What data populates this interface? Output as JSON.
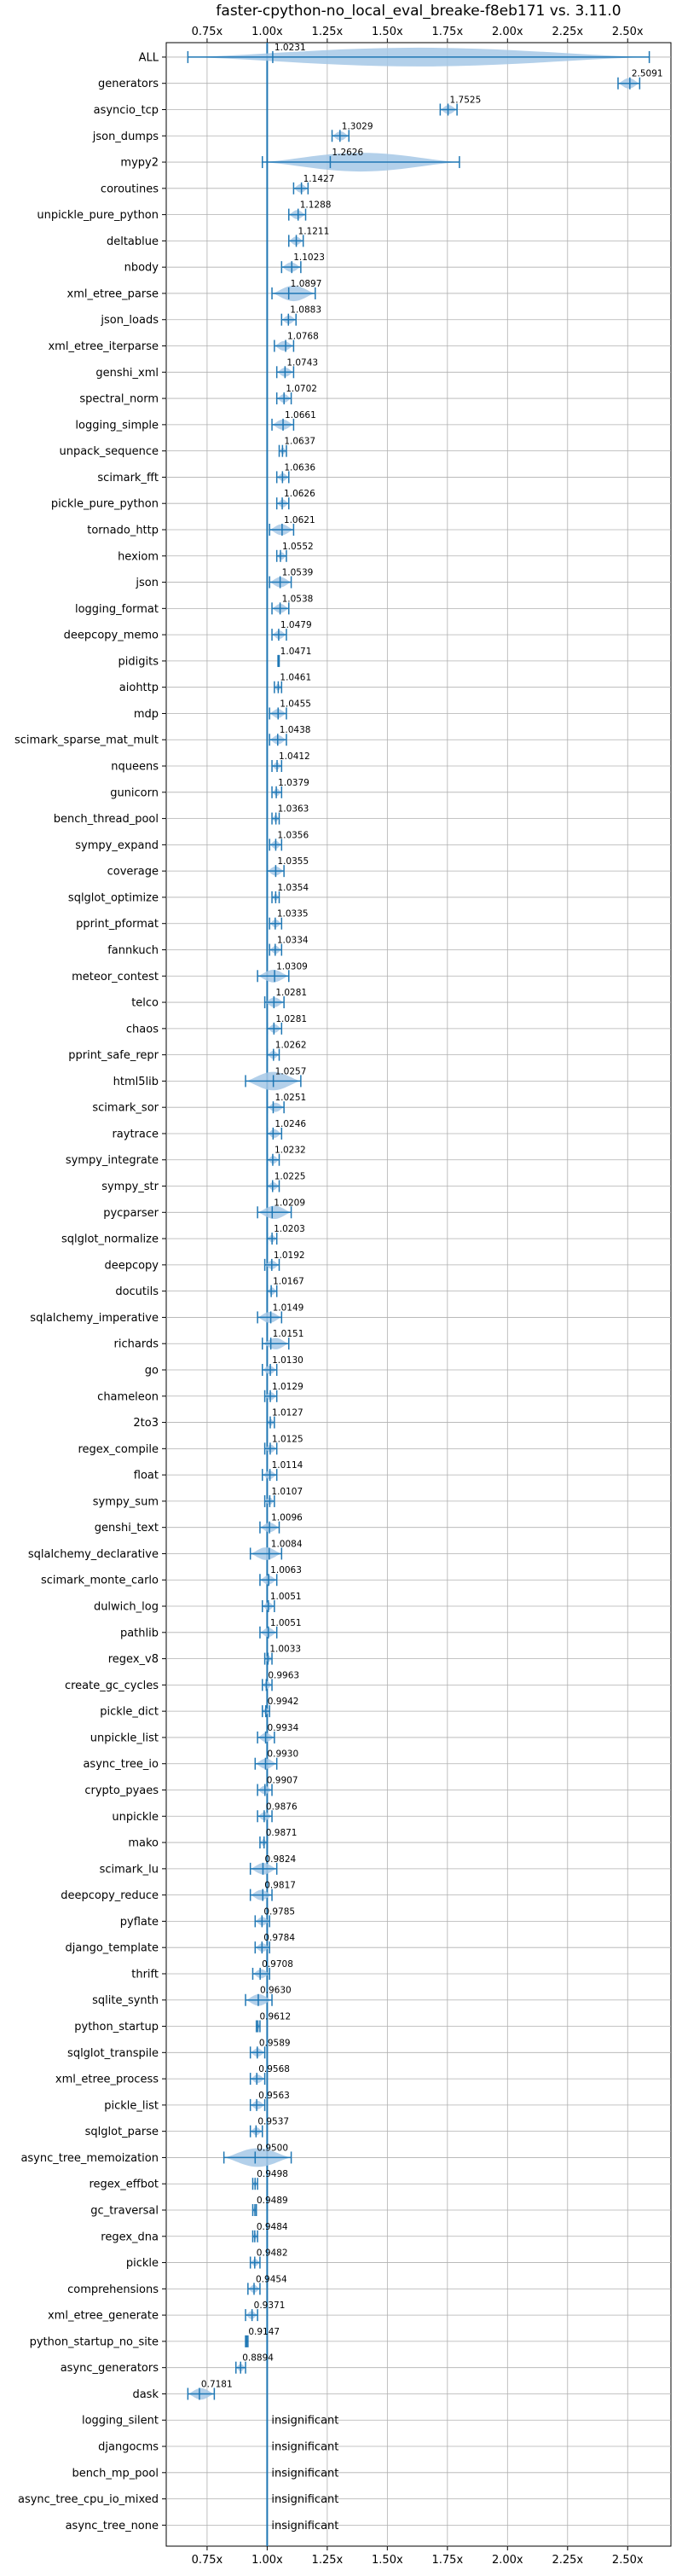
{
  "chart_data": {
    "type": "violin",
    "title": "faster-cpython-no_local_eval_breake-f8eb171 vs. 3.11.0",
    "xlabel": "",
    "ylabel": "",
    "xlim": [
      0.58,
      2.68
    ],
    "x_ticks": [
      0.75,
      1.0,
      1.25,
      1.5,
      1.75,
      2.0,
      2.25,
      2.5
    ],
    "x_tick_labels": [
      "0.75x",
      "1.00x",
      "1.25x",
      "1.50x",
      "1.75x",
      "2.00x",
      "2.25x",
      "2.50x"
    ],
    "x_tick_labels_top": [
      "0.75x",
      "1.00x",
      "1.25x",
      "1.50x",
      "1.75x",
      "2.00x",
      "2.25x",
      "2.50x"
    ],
    "reference_line": 1.0,
    "grid": true,
    "insignificant_label": "insignificant",
    "benchmarks": [
      {
        "name": "ALL",
        "value": 1.0231,
        "label": "1.0231",
        "min": 0.67,
        "max": 2.59
      },
      {
        "name": "generators",
        "value": 2.5091,
        "label": "2.5091",
        "min": 2.46,
        "max": 2.55
      },
      {
        "name": "asyncio_tcp",
        "value": 1.7525,
        "label": "1.7525",
        "min": 1.72,
        "max": 1.79
      },
      {
        "name": "json_dumps",
        "value": 1.3029,
        "label": "1.3029",
        "min": 1.27,
        "max": 1.34
      },
      {
        "name": "mypy2",
        "value": 1.2626,
        "label": "1.2626",
        "min": 0.98,
        "max": 1.8
      },
      {
        "name": "coroutines",
        "value": 1.1427,
        "label": "1.1427",
        "min": 1.11,
        "max": 1.17
      },
      {
        "name": "unpickle_pure_python",
        "value": 1.1288,
        "label": "1.1288",
        "min": 1.09,
        "max": 1.16
      },
      {
        "name": "deltablue",
        "value": 1.1211,
        "label": "1.1211",
        "min": 1.09,
        "max": 1.15
      },
      {
        "name": "nbody",
        "value": 1.1023,
        "label": "1.1023",
        "min": 1.06,
        "max": 1.14
      },
      {
        "name": "xml_etree_parse",
        "value": 1.0897,
        "label": "1.0897",
        "min": 1.02,
        "max": 1.2
      },
      {
        "name": "json_loads",
        "value": 1.0883,
        "label": "1.0883",
        "min": 1.06,
        "max": 1.12
      },
      {
        "name": "xml_etree_iterparse",
        "value": 1.0768,
        "label": "1.0768",
        "min": 1.03,
        "max": 1.11
      },
      {
        "name": "genshi_xml",
        "value": 1.0743,
        "label": "1.0743",
        "min": 1.04,
        "max": 1.11
      },
      {
        "name": "spectral_norm",
        "value": 1.0702,
        "label": "1.0702",
        "min": 1.04,
        "max": 1.1
      },
      {
        "name": "logging_simple",
        "value": 1.0661,
        "label": "1.0661",
        "min": 1.02,
        "max": 1.11
      },
      {
        "name": "unpack_sequence",
        "value": 1.0637,
        "label": "1.0637",
        "min": 1.05,
        "max": 1.08
      },
      {
        "name": "scimark_fft",
        "value": 1.0636,
        "label": "1.0636",
        "min": 1.04,
        "max": 1.09
      },
      {
        "name": "pickle_pure_python",
        "value": 1.0626,
        "label": "1.0626",
        "min": 1.04,
        "max": 1.09
      },
      {
        "name": "tornado_http",
        "value": 1.0621,
        "label": "1.0621",
        "min": 1.01,
        "max": 1.11
      },
      {
        "name": "hexiom",
        "value": 1.0552,
        "label": "1.0552",
        "min": 1.04,
        "max": 1.08
      },
      {
        "name": "json",
        "value": 1.0539,
        "label": "1.0539",
        "min": 1.01,
        "max": 1.1
      },
      {
        "name": "logging_format",
        "value": 1.0538,
        "label": "1.0538",
        "min": 1.02,
        "max": 1.09
      },
      {
        "name": "deepcopy_memo",
        "value": 1.0479,
        "label": "1.0479",
        "min": 1.02,
        "max": 1.08
      },
      {
        "name": "pidigits",
        "value": 1.0471,
        "label": "1.0471",
        "min": 1.045,
        "max": 1.05
      },
      {
        "name": "aiohttp",
        "value": 1.0461,
        "label": "1.0461",
        "min": 1.03,
        "max": 1.06
      },
      {
        "name": "mdp",
        "value": 1.0455,
        "label": "1.0455",
        "min": 1.01,
        "max": 1.08
      },
      {
        "name": "scimark_sparse_mat_mult",
        "value": 1.0438,
        "label": "1.0438",
        "min": 1.01,
        "max": 1.08
      },
      {
        "name": "nqueens",
        "value": 1.0412,
        "label": "1.0412",
        "min": 1.02,
        "max": 1.06
      },
      {
        "name": "gunicorn",
        "value": 1.0379,
        "label": "1.0379",
        "min": 1.02,
        "max": 1.06
      },
      {
        "name": "bench_thread_pool",
        "value": 1.0363,
        "label": "1.0363",
        "min": 1.02,
        "max": 1.05
      },
      {
        "name": "sympy_expand",
        "value": 1.0356,
        "label": "1.0356",
        "min": 1.01,
        "max": 1.06
      },
      {
        "name": "coverage",
        "value": 1.0355,
        "label": "1.0355",
        "min": 1.0,
        "max": 1.07
      },
      {
        "name": "sqlglot_optimize",
        "value": 1.0354,
        "label": "1.0354",
        "min": 1.02,
        "max": 1.05
      },
      {
        "name": "pprint_pformat",
        "value": 1.0335,
        "label": "1.0335",
        "min": 1.01,
        "max": 1.06
      },
      {
        "name": "fannkuch",
        "value": 1.0334,
        "label": "1.0334",
        "min": 1.01,
        "max": 1.06
      },
      {
        "name": "meteor_contest",
        "value": 1.0309,
        "label": "1.0309",
        "min": 0.96,
        "max": 1.09
      },
      {
        "name": "telco",
        "value": 1.0281,
        "label": "1.0281",
        "min": 0.99,
        "max": 1.07
      },
      {
        "name": "chaos",
        "value": 1.0281,
        "label": "1.0281",
        "min": 1.0,
        "max": 1.06
      },
      {
        "name": "pprint_safe_repr",
        "value": 1.0262,
        "label": "1.0262",
        "min": 1.0,
        "max": 1.05
      },
      {
        "name": "html5lib",
        "value": 1.0257,
        "label": "1.0257",
        "min": 0.91,
        "max": 1.14
      },
      {
        "name": "scimark_sor",
        "value": 1.0251,
        "label": "1.0251",
        "min": 1.0,
        "max": 1.07
      },
      {
        "name": "raytrace",
        "value": 1.0246,
        "label": "1.0246",
        "min": 1.0,
        "max": 1.06
      },
      {
        "name": "sympy_integrate",
        "value": 1.0232,
        "label": "1.0232",
        "min": 1.0,
        "max": 1.05
      },
      {
        "name": "sympy_str",
        "value": 1.0225,
        "label": "1.0225",
        "min": 1.0,
        "max": 1.05
      },
      {
        "name": "pycparser",
        "value": 1.0209,
        "label": "1.0209",
        "min": 0.96,
        "max": 1.1
      },
      {
        "name": "sqlglot_normalize",
        "value": 1.0203,
        "label": "1.0203",
        "min": 1.0,
        "max": 1.04
      },
      {
        "name": "deepcopy",
        "value": 1.0192,
        "label": "1.0192",
        "min": 0.99,
        "max": 1.05
      },
      {
        "name": "docutils",
        "value": 1.0167,
        "label": "1.0167",
        "min": 1.0,
        "max": 1.04
      },
      {
        "name": "sqlalchemy_imperative",
        "value": 1.0149,
        "label": "1.0149",
        "min": 0.96,
        "max": 1.06
      },
      {
        "name": "richards",
        "value": 1.0151,
        "label": "1.0151",
        "min": 0.98,
        "max": 1.09
      },
      {
        "name": "go",
        "value": 1.013,
        "label": "1.0130",
        "min": 0.98,
        "max": 1.04
      },
      {
        "name": "chameleon",
        "value": 1.0129,
        "label": "1.0129",
        "min": 0.99,
        "max": 1.04
      },
      {
        "name": "2to3",
        "value": 1.0127,
        "label": "1.0127",
        "min": 1.0,
        "max": 1.03
      },
      {
        "name": "regex_compile",
        "value": 1.0125,
        "label": "1.0125",
        "min": 0.99,
        "max": 1.04
      },
      {
        "name": "float",
        "value": 1.0114,
        "label": "1.0114",
        "min": 0.98,
        "max": 1.04
      },
      {
        "name": "sympy_sum",
        "value": 1.0107,
        "label": "1.0107",
        "min": 0.99,
        "max": 1.03
      },
      {
        "name": "genshi_text",
        "value": 1.0096,
        "label": "1.0096",
        "min": 0.97,
        "max": 1.05
      },
      {
        "name": "sqlalchemy_declarative",
        "value": 1.0084,
        "label": "1.0084",
        "min": 0.93,
        "max": 1.06
      },
      {
        "name": "scimark_monte_carlo",
        "value": 1.0063,
        "label": "1.0063",
        "min": 0.97,
        "max": 1.04
      },
      {
        "name": "dulwich_log",
        "value": 1.0051,
        "label": "1.0051",
        "min": 0.98,
        "max": 1.03
      },
      {
        "name": "pathlib",
        "value": 1.0051,
        "label": "1.0051",
        "min": 0.97,
        "max": 1.04
      },
      {
        "name": "regex_v8",
        "value": 1.0033,
        "label": "1.0033",
        "min": 0.99,
        "max": 1.02
      },
      {
        "name": "create_gc_cycles",
        "value": 0.9963,
        "label": "0.9963",
        "min": 0.98,
        "max": 1.02
      },
      {
        "name": "pickle_dict",
        "value": 0.9942,
        "label": "0.9942",
        "min": 0.98,
        "max": 1.01
      },
      {
        "name": "unpickle_list",
        "value": 0.9934,
        "label": "0.9934",
        "min": 0.96,
        "max": 1.03
      },
      {
        "name": "async_tree_io",
        "value": 0.993,
        "label": "0.9930",
        "min": 0.95,
        "max": 1.04
      },
      {
        "name": "crypto_pyaes",
        "value": 0.9907,
        "label": "0.9907",
        "min": 0.96,
        "max": 1.02
      },
      {
        "name": "unpickle",
        "value": 0.9876,
        "label": "0.9876",
        "min": 0.96,
        "max": 1.02
      },
      {
        "name": "mako",
        "value": 0.9871,
        "label": "0.9871",
        "min": 0.97,
        "max": 1.0
      },
      {
        "name": "scimark_lu",
        "value": 0.9824,
        "label": "0.9824",
        "min": 0.93,
        "max": 1.04
      },
      {
        "name": "deepcopy_reduce",
        "value": 0.9817,
        "label": "0.9817",
        "min": 0.93,
        "max": 1.02
      },
      {
        "name": "pyflate",
        "value": 0.9785,
        "label": "0.9785",
        "min": 0.95,
        "max": 1.01
      },
      {
        "name": "django_template",
        "value": 0.9784,
        "label": "0.9784",
        "min": 0.95,
        "max": 1.01
      },
      {
        "name": "thrift",
        "value": 0.9708,
        "label": "0.9708",
        "min": 0.94,
        "max": 1.01
      },
      {
        "name": "sqlite_synth",
        "value": 0.963,
        "label": "0.9630",
        "min": 0.91,
        "max": 1.02
      },
      {
        "name": "python_startup",
        "value": 0.9612,
        "label": "0.9612",
        "min": 0.955,
        "max": 0.97
      },
      {
        "name": "sqlglot_transpile",
        "value": 0.9589,
        "label": "0.9589",
        "min": 0.93,
        "max": 0.99
      },
      {
        "name": "xml_etree_process",
        "value": 0.9568,
        "label": "0.9568",
        "min": 0.93,
        "max": 0.99
      },
      {
        "name": "pickle_list",
        "value": 0.9563,
        "label": "0.9563",
        "min": 0.93,
        "max": 0.99
      },
      {
        "name": "sqlglot_parse",
        "value": 0.9537,
        "label": "0.9537",
        "min": 0.93,
        "max": 0.98
      },
      {
        "name": "async_tree_memoization",
        "value": 0.95,
        "label": "0.9500",
        "min": 0.82,
        "max": 1.1
      },
      {
        "name": "regex_effbot",
        "value": 0.9498,
        "label": "0.9498",
        "min": 0.94,
        "max": 0.96
      },
      {
        "name": "gc_traversal",
        "value": 0.9489,
        "label": "0.9489",
        "min": 0.94,
        "max": 0.955
      },
      {
        "name": "regex_dna",
        "value": 0.9484,
        "label": "0.9484",
        "min": 0.94,
        "max": 0.96
      },
      {
        "name": "pickle",
        "value": 0.9482,
        "label": "0.9482",
        "min": 0.93,
        "max": 0.97
      },
      {
        "name": "comprehensions",
        "value": 0.9454,
        "label": "0.9454",
        "min": 0.92,
        "max": 0.97
      },
      {
        "name": "xml_etree_generate",
        "value": 0.9371,
        "label": "0.9371",
        "min": 0.91,
        "max": 0.96
      },
      {
        "name": "python_startup_no_site",
        "value": 0.9147,
        "label": "0.9147",
        "min": 0.91,
        "max": 0.92
      },
      {
        "name": "async_generators",
        "value": 0.8894,
        "label": "0.8894",
        "min": 0.87,
        "max": 0.91
      },
      {
        "name": "dask",
        "value": 0.7181,
        "label": "0.7181",
        "min": 0.67,
        "max": 0.78
      },
      {
        "name": "logging_silent",
        "insignificant": true
      },
      {
        "name": "djangocms",
        "insignificant": true
      },
      {
        "name": "bench_mp_pool",
        "insignificant": true
      },
      {
        "name": "async_tree_cpu_io_mixed",
        "insignificant": true
      },
      {
        "name": "async_tree_none",
        "insignificant": true
      }
    ]
  },
  "colors": {
    "accent": "#1f77b4",
    "violin_fill": "#a6c8e6",
    "grid": "#b0b0b0",
    "text": "#000000"
  }
}
